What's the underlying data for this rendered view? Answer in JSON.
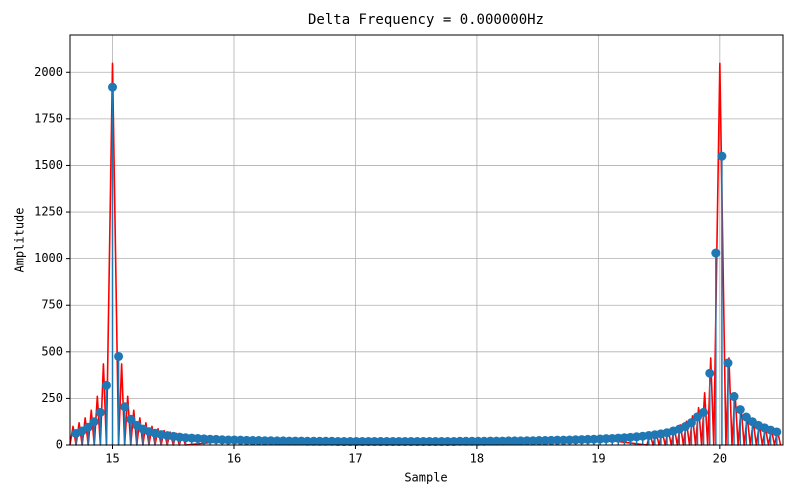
{
  "chart_data": {
    "type": "stem",
    "title": "Delta Frequency = 0.000000Hz",
    "xlabel": "Sample",
    "ylabel": "Amplitude",
    "xlim": [
      14.65,
      20.52
    ],
    "ylim": [
      0,
      2200
    ],
    "xticks": [
      15,
      16,
      17,
      18,
      19,
      20
    ],
    "yticks": [
      0,
      250,
      500,
      750,
      1000,
      1250,
      1500,
      1750,
      2000
    ],
    "grid": true,
    "series": [
      {
        "type": "line",
        "color": "#ff0000",
        "x": [
          14.65,
          14.675,
          14.7,
          14.725,
          14.75,
          14.775,
          14.8,
          14.825,
          14.85,
          14.875,
          14.9,
          14.925,
          14.95,
          15.0,
          15.05,
          15.075,
          15.1,
          15.125,
          15.15,
          15.175,
          15.2,
          15.225,
          15.25,
          15.275,
          15.3,
          15.325,
          15.35,
          15.375,
          15.4,
          15.425,
          15.45,
          15.475,
          15.5,
          15.525,
          15.55,
          15.575,
          15.6,
          16.0,
          16.5,
          17.0,
          17.5,
          18.0,
          18.5,
          19.0,
          19.4,
          19.425,
          19.45,
          19.475,
          19.5,
          19.525,
          19.55,
          19.575,
          19.6,
          19.625,
          19.65,
          19.675,
          19.7,
          19.725,
          19.75,
          19.775,
          19.8,
          19.825,
          19.85,
          19.875,
          19.9,
          19.925,
          19.95,
          20.0,
          20.05,
          20.075,
          20.1,
          20.125,
          20.15,
          20.175,
          20.2,
          20.225,
          20.25,
          20.275,
          20.3,
          20.325,
          20.35,
          20.375,
          20.4,
          20.425,
          20.45,
          20.475,
          20.5
        ],
        "values": [
          0,
          100,
          0,
          119,
          0,
          145,
          0,
          186,
          0,
          261,
          0,
          435,
          0,
          2048,
          0,
          435,
          0,
          261,
          0,
          186,
          0,
          145,
          0,
          119,
          0,
          100,
          0,
          87,
          0,
          77,
          0,
          69,
          0,
          62,
          0,
          57,
          0,
          25,
          21,
          19,
          19,
          20,
          24,
          32,
          0,
          61,
          0,
          67,
          0,
          74,
          0,
          82,
          0,
          93,
          0,
          108,
          0,
          127,
          0,
          156,
          0,
          200,
          0,
          280,
          0,
          467,
          0,
          2048,
          0,
          467,
          0,
          280,
          0,
          200,
          0,
          156,
          0,
          127,
          0,
          108,
          0,
          93,
          0,
          82,
          0,
          74,
          0
        ]
      },
      {
        "type": "stem",
        "color": "#1f77b4",
        "x": [
          14.699,
          14.749,
          14.799,
          14.849,
          14.9,
          14.95,
          15.0,
          15.05,
          15.1,
          15.151,
          15.201,
          15.251,
          15.301,
          15.351,
          15.401,
          15.452,
          15.502,
          15.552,
          15.602,
          15.652,
          15.702,
          15.753,
          15.803,
          15.853,
          15.903,
          15.953,
          16.003,
          16.054,
          16.104,
          16.154,
          16.204,
          16.254,
          16.304,
          16.355,
          16.405,
          16.455,
          16.505,
          16.555,
          16.605,
          16.656,
          16.706,
          16.756,
          16.806,
          16.856,
          16.906,
          16.957,
          17.007,
          17.057,
          17.107,
          17.157,
          17.207,
          17.258,
          17.308,
          17.358,
          17.408,
          17.458,
          17.509,
          17.559,
          17.609,
          17.659,
          17.709,
          17.759,
          17.81,
          17.86,
          17.91,
          17.96,
          18.01,
          18.06,
          18.111,
          18.161,
          18.211,
          18.261,
          18.311,
          18.361,
          18.412,
          18.462,
          18.512,
          18.562,
          18.612,
          18.662,
          18.713,
          18.763,
          18.813,
          18.863,
          18.913,
          18.963,
          19.014,
          19.064,
          19.114,
          19.164,
          19.214,
          19.264,
          19.315,
          19.365,
          19.415,
          19.465,
          19.515,
          19.565,
          19.616,
          19.666,
          19.716,
          19.766,
          19.816,
          19.866,
          19.917,
          19.967,
          20.017,
          20.067,
          20.117,
          20.168,
          20.218,
          20.268,
          20.318,
          20.368,
          20.418,
          20.469
        ],
        "values": [
          62,
          75,
          95,
          125,
          175,
          320,
          1920,
          475,
          205,
          138,
          105,
          85,
          72,
          63,
          56,
          50,
          46,
          42,
          39,
          37,
          35,
          33,
          31,
          30,
          28,
          27,
          27,
          26,
          25,
          24,
          24,
          23,
          23,
          22,
          22,
          21,
          21,
          21,
          20,
          20,
          20,
          20,
          20,
          19,
          19,
          19,
          19,
          19,
          19,
          19,
          19,
          19,
          19,
          19,
          19,
          19,
          19,
          19,
          19,
          19,
          19,
          19,
          19,
          20,
          20,
          20,
          20,
          20,
          21,
          21,
          21,
          22,
          22,
          22,
          23,
          23,
          24,
          24,
          25,
          26,
          26,
          27,
          28,
          29,
          30,
          31,
          32,
          34,
          35,
          37,
          39,
          41,
          44,
          47,
          51,
          55,
          60,
          66,
          75,
          85,
          99,
          120,
          151,
          175,
          385,
          1030,
          1550,
          440,
          260,
          190,
          150,
          125,
          105,
          92,
          80,
          70
        ]
      }
    ]
  }
}
